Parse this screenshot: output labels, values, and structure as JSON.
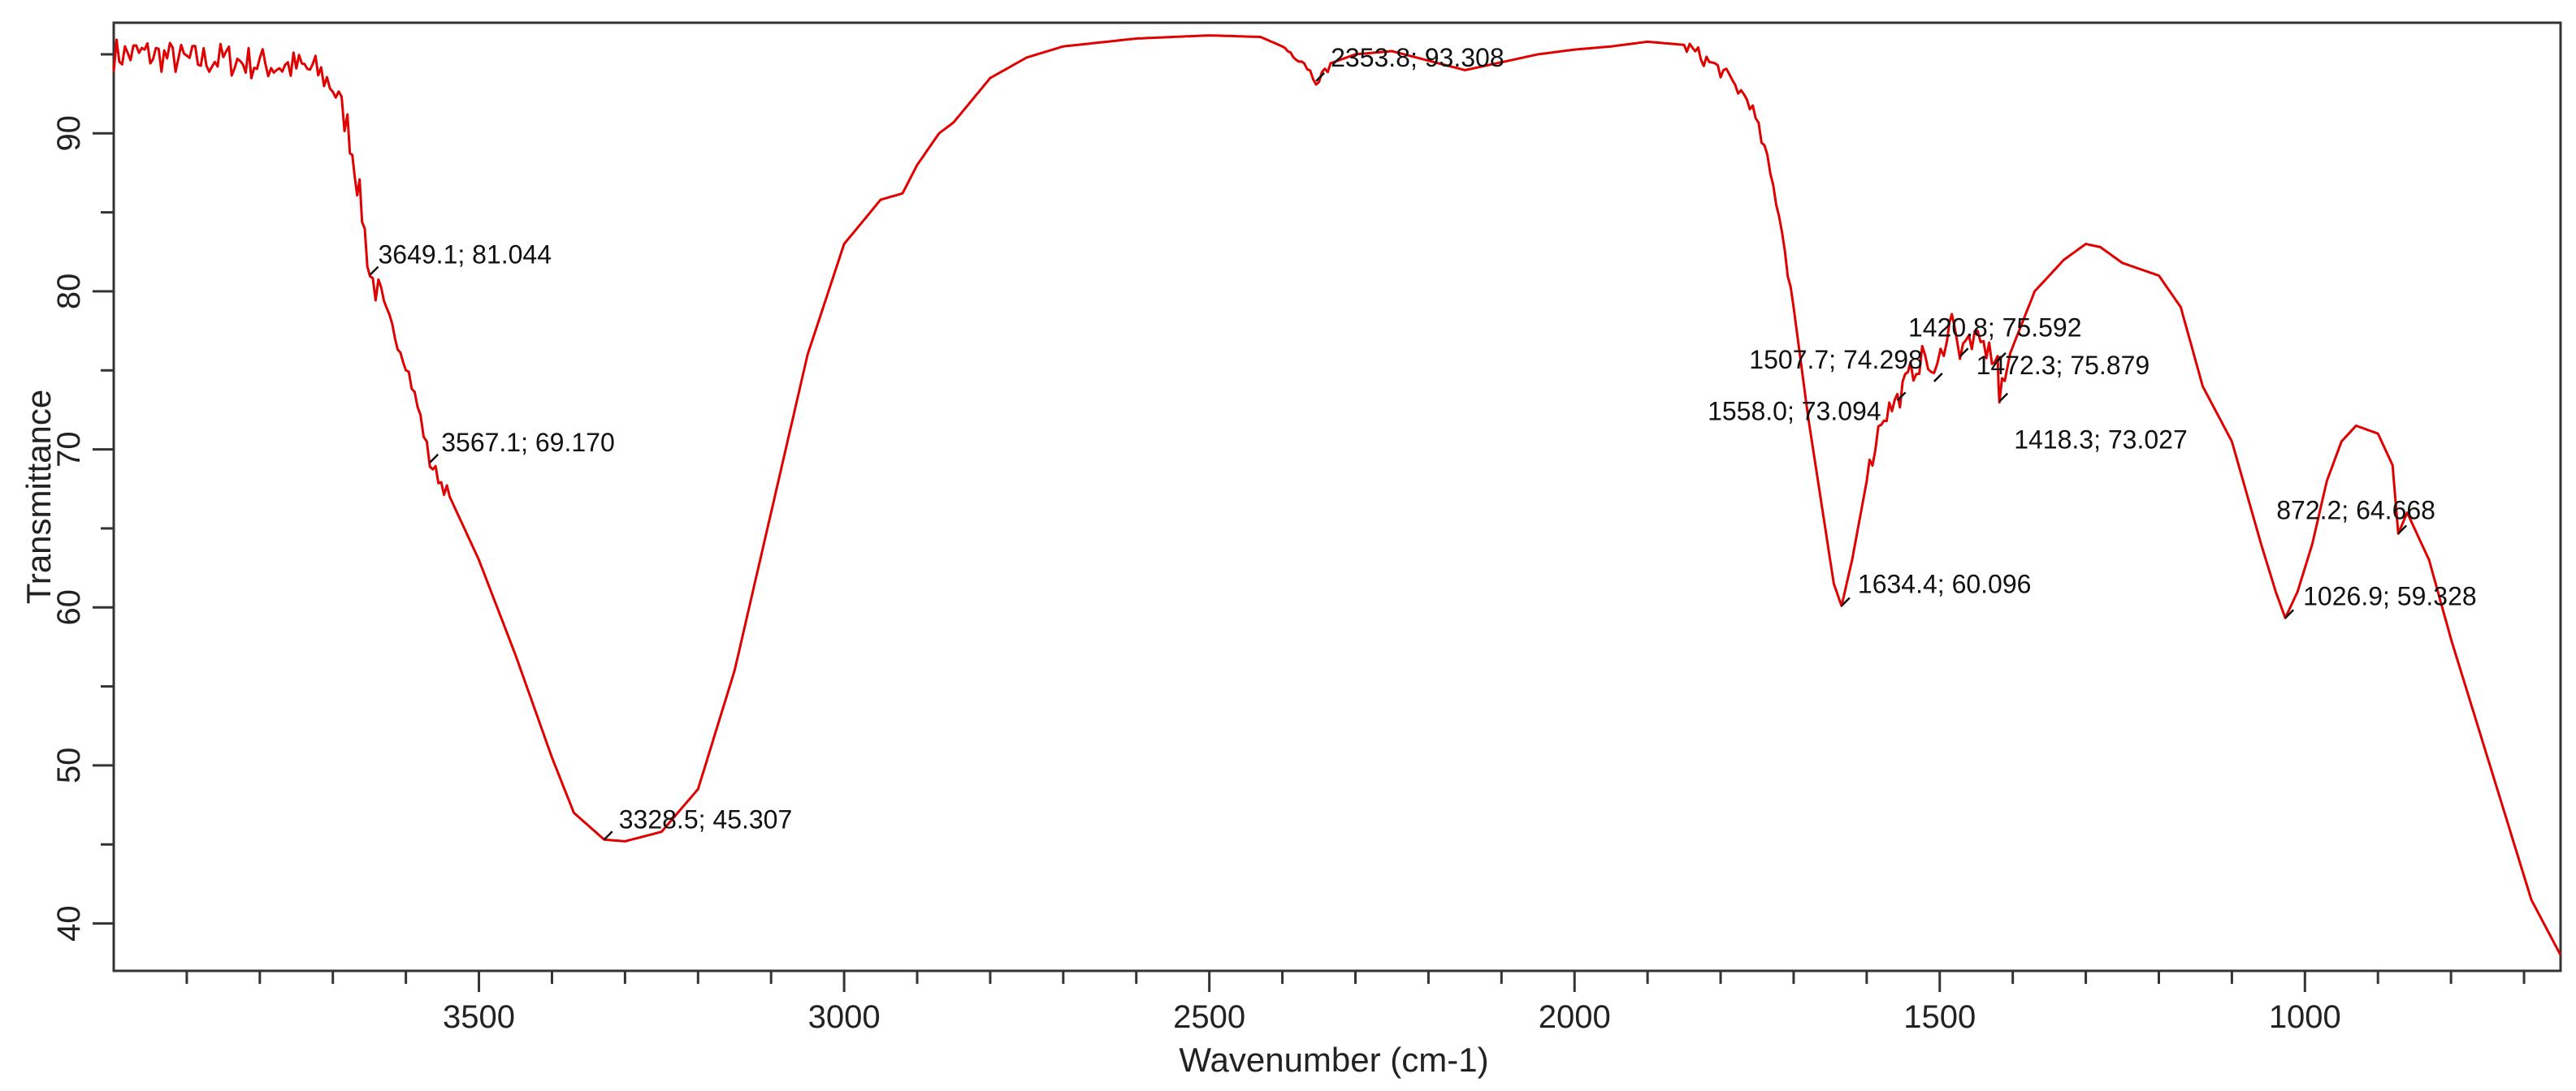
{
  "chart_data": {
    "type": "line",
    "title": "",
    "xlabel": "Wavenumber (cm-1)",
    "ylabel": "Transmittance",
    "xlim": [
      4000,
      650
    ],
    "ylim": [
      37,
      97
    ],
    "x_reversed": true,
    "grid": false,
    "legend": "none",
    "color": "#e00000",
    "xticks": [
      3500,
      3000,
      2500,
      2000,
      1500,
      1000
    ],
    "yticks": [
      40,
      50,
      60,
      70,
      80,
      90
    ],
    "series": [
      {
        "name": "",
        "points": [
          [
            4000,
            95.0
          ],
          [
            3950,
            95.0
          ],
          [
            3900,
            94.6
          ],
          [
            3850,
            94.7
          ],
          [
            3800,
            94.4
          ],
          [
            3750,
            94.2
          ],
          [
            3720,
            93.9
          ],
          [
            3700,
            93.0
          ],
          [
            3680,
            90.5
          ],
          [
            3670,
            88.0
          ],
          [
            3660,
            85.0
          ],
          [
            3649.1,
            81.044
          ],
          [
            3630,
            79.0
          ],
          [
            3600,
            75.5
          ],
          [
            3580,
            72.0
          ],
          [
            3567.1,
            69.17
          ],
          [
            3540,
            67.0
          ],
          [
            3500,
            63.0
          ],
          [
            3450,
            57.0
          ],
          [
            3400,
            50.5
          ],
          [
            3370,
            47.0
          ],
          [
            3328.5,
            45.307
          ],
          [
            3300,
            45.2
          ],
          [
            3250,
            45.8
          ],
          [
            3200,
            48.5
          ],
          [
            3150,
            56.0
          ],
          [
            3100,
            66.0
          ],
          [
            3050,
            76.0
          ],
          [
            3000,
            83.0
          ],
          [
            2950,
            85.8
          ],
          [
            2920,
            86.2
          ],
          [
            2900,
            88.0
          ],
          [
            2870,
            90.0
          ],
          [
            2850,
            90.7
          ],
          [
            2800,
            93.5
          ],
          [
            2750,
            94.8
          ],
          [
            2700,
            95.5
          ],
          [
            2600,
            96.0
          ],
          [
            2500,
            96.2
          ],
          [
            2430,
            96.1
          ],
          [
            2400,
            95.5
          ],
          [
            2370,
            94.5
          ],
          [
            2353.8,
            93.308
          ],
          [
            2330,
            94.5
          ],
          [
            2300,
            95.0
          ],
          [
            2250,
            95.2
          ],
          [
            2200,
            94.6
          ],
          [
            2150,
            94.0
          ],
          [
            2100,
            94.5
          ],
          [
            2050,
            95.0
          ],
          [
            2000,
            95.3
          ],
          [
            1950,
            95.5
          ],
          [
            1900,
            95.8
          ],
          [
            1850,
            95.6
          ],
          [
            1800,
            94.0
          ],
          [
            1760,
            92.0
          ],
          [
            1740,
            89.0
          ],
          [
            1720,
            85.0
          ],
          [
            1700,
            79.0
          ],
          [
            1680,
            72.0
          ],
          [
            1660,
            66.0
          ],
          [
            1645,
            61.5
          ],
          [
            1634.4,
            60.096
          ],
          [
            1620,
            63.0
          ],
          [
            1600,
            68.0
          ],
          [
            1580,
            72.0
          ],
          [
            1558.0,
            73.094
          ],
          [
            1540,
            74.8
          ],
          [
            1520,
            76.0
          ],
          [
            1507.7,
            74.298
          ],
          [
            1490,
            77.5
          ],
          [
            1480,
            78.5
          ],
          [
            1472.3,
            75.879
          ],
          [
            1460,
            77.0
          ],
          [
            1440,
            76.5
          ],
          [
            1420.8,
            75.592
          ],
          [
            1418.3,
            73.027
          ],
          [
            1400,
            76.5
          ],
          [
            1370,
            80.0
          ],
          [
            1330,
            82.0
          ],
          [
            1300,
            83.0
          ],
          [
            1280,
            82.8
          ],
          [
            1250,
            81.8
          ],
          [
            1200,
            81.0
          ],
          [
            1170,
            79.0
          ],
          [
            1140,
            74.0
          ],
          [
            1100,
            70.5
          ],
          [
            1060,
            64.0
          ],
          [
            1040,
            61.0
          ],
          [
            1026.9,
            59.328
          ],
          [
            1010,
            61.0
          ],
          [
            990,
            64.0
          ],
          [
            970,
            68.0
          ],
          [
            950,
            70.5
          ],
          [
            930,
            71.5
          ],
          [
            900,
            71.0
          ],
          [
            880,
            69.0
          ],
          [
            872.2,
            64.668
          ],
          [
            860,
            66.0
          ],
          [
            830,
            63.0
          ],
          [
            800,
            58.0
          ],
          [
            760,
            52.0
          ],
          [
            720,
            46.0
          ],
          [
            690,
            41.5
          ],
          [
            650,
            38.0
          ]
        ]
      }
    ],
    "annotations": [
      {
        "label": "3649.1; 81.044",
        "x": 3649.1,
        "y": 81.044
      },
      {
        "label": "3567.1; 69.170",
        "x": 3567.1,
        "y": 69.17
      },
      {
        "label": "3328.5; 45.307",
        "x": 3328.5,
        "y": 45.307
      },
      {
        "label": "2353.8; 93.308",
        "x": 2353.8,
        "y": 93.308
      },
      {
        "label": "1507.7; 74.298",
        "x": 1507.7,
        "y": 74.298
      },
      {
        "label": "1420.8; 75.592",
        "x": 1420.8,
        "y": 75.592
      },
      {
        "label": "1472.3; 75.879",
        "x": 1472.3,
        "y": 75.879
      },
      {
        "label": "1558.0; 73.094",
        "x": 1558.0,
        "y": 73.094
      },
      {
        "label": "1418.3; 73.027",
        "x": 1418.3,
        "y": 73.027
      },
      {
        "label": "1634.4; 60.096",
        "x": 1634.4,
        "y": 60.096
      },
      {
        "label": "872.2; 64.668",
        "x": 872.2,
        "y": 64.668
      },
      {
        "label": "1026.9; 59.328",
        "x": 1026.9,
        "y": 59.328
      }
    ]
  }
}
